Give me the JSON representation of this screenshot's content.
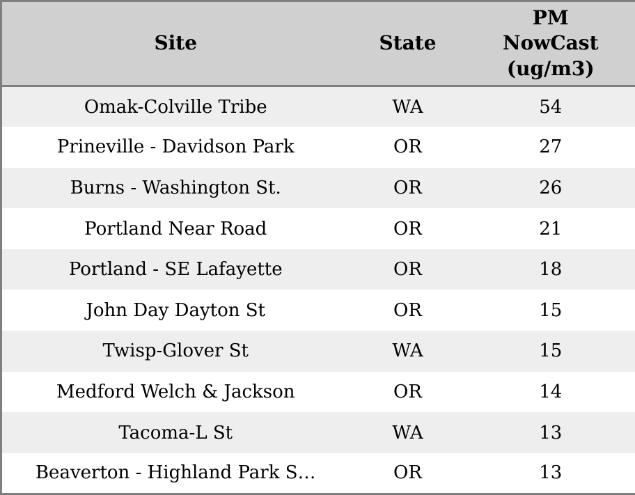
{
  "table": {
    "name": "PM NowCast site readings",
    "columns": [
      {
        "label": "Site"
      },
      {
        "label": "State"
      },
      {
        "label": "PM NowCast (ug/m3)"
      }
    ],
    "rows": [
      {
        "site": "Omak-Colville Tribe",
        "state": "WA",
        "value": "54"
      },
      {
        "site": "Prineville - Davidson Park",
        "state": "OR",
        "value": "27"
      },
      {
        "site": "Burns - Washington St.",
        "state": "OR",
        "value": "26"
      },
      {
        "site": "Portland Near Road",
        "state": "OR",
        "value": "21"
      },
      {
        "site": "Portland - SE Lafayette",
        "state": "OR",
        "value": "18"
      },
      {
        "site": "John Day Dayton St",
        "state": "OR",
        "value": "15"
      },
      {
        "site": "Twisp-Glover St",
        "state": "WA",
        "value": "15"
      },
      {
        "site": "Medford Welch & Jackson",
        "state": "OR",
        "value": "14"
      },
      {
        "site": "Tacoma-L St",
        "state": "WA",
        "value": "13"
      },
      {
        "site": "Beaverton - Highland Park S…",
        "state": "OR",
        "value": "13"
      }
    ],
    "colors": {
      "header_bg": "#d0d0d0",
      "border": "#7f7f7f",
      "stripe_row_bg": "#eeeeee",
      "plain_row_bg": "#ffffff",
      "text": "#000000"
    }
  }
}
